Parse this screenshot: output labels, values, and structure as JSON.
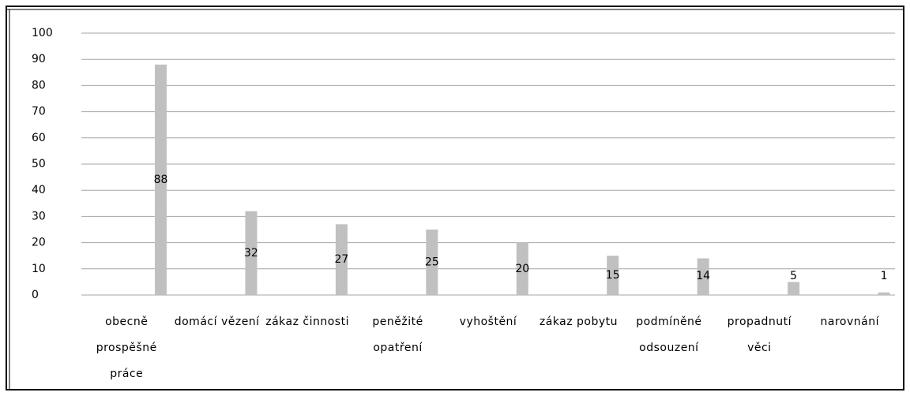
{
  "chart_data": {
    "type": "bar",
    "categories": [
      "obecně prospěšné práce",
      "domácí vězení",
      "zákaz činnosti",
      "peněžité opatření",
      "vyhoštění",
      "zákaz pobytu",
      "podmíněné odsouzení",
      "propadnutí věci",
      "narovnání"
    ],
    "values": [
      88,
      32,
      27,
      25,
      20,
      15,
      14,
      5,
      1
    ],
    "color": "#c0c0c0",
    "ylim": [
      0,
      100
    ],
    "yticks": [
      0,
      10,
      20,
      30,
      40,
      50,
      60,
      70,
      80,
      90,
      100
    ],
    "grid": true
  }
}
